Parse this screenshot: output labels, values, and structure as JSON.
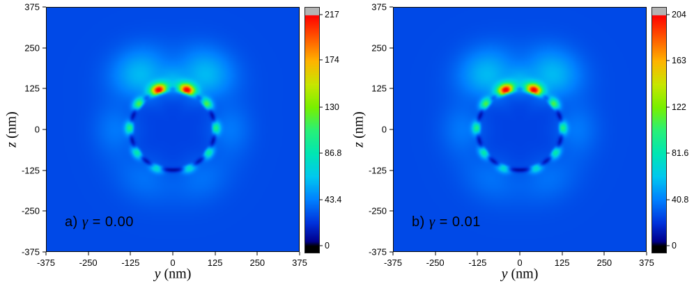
{
  "figure": {
    "background": "#ffffff"
  },
  "colormap": {
    "stops": [
      {
        "t": 0.0,
        "color": "#000000"
      },
      {
        "t": 0.02,
        "color": "#00008c"
      },
      {
        "t": 0.1,
        "color": "#0032dc"
      },
      {
        "t": 0.2,
        "color": "#0080ff"
      },
      {
        "t": 0.3,
        "color": "#00c8f0"
      },
      {
        "t": 0.4,
        "color": "#00e6b4"
      },
      {
        "t": 0.5,
        "color": "#28f078"
      },
      {
        "t": 0.6,
        "color": "#78f000"
      },
      {
        "t": 0.7,
        "color": "#c8e600"
      },
      {
        "t": 0.8,
        "color": "#ffb400"
      },
      {
        "t": 0.9,
        "color": "#ff5a00"
      },
      {
        "t": 1.0,
        "color": "#ff0000"
      }
    ],
    "over_color": "#b4b4b4",
    "under_color": "#000000"
  },
  "field_model": {
    "sphere_radius_nm": 125,
    "background_level": 0.13,
    "interior_level": 0.12,
    "rim_dip": {
      "depth": 0.115,
      "width_nm": 5
    },
    "hotspots": [
      {
        "angle_deg": 19,
        "amp": 0.95,
        "ang_sigma_deg": 8,
        "radial_sigma_out_nm": 15,
        "radial_sigma_in_nm": 6
      },
      {
        "angle_deg": -19,
        "amp": 0.95,
        "ang_sigma_deg": 8,
        "radial_sigma_out_nm": 15,
        "radial_sigma_in_nm": 6
      },
      {
        "angle_deg": 52,
        "amp": 0.5,
        "ang_sigma_deg": 6,
        "radial_sigma_out_nm": 11,
        "radial_sigma_in_nm": 5
      },
      {
        "angle_deg": -52,
        "amp": 0.5,
        "ang_sigma_deg": 6,
        "radial_sigma_out_nm": 11,
        "radial_sigma_in_nm": 5
      },
      {
        "angle_deg": 88,
        "amp": 0.42,
        "ang_sigma_deg": 6,
        "radial_sigma_out_nm": 10,
        "radial_sigma_in_nm": 5
      },
      {
        "angle_deg": -88,
        "amp": 0.42,
        "ang_sigma_deg": 6,
        "radial_sigma_out_nm": 10,
        "radial_sigma_in_nm": 5
      },
      {
        "angle_deg": 124,
        "amp": 0.38,
        "ang_sigma_deg": 6,
        "radial_sigma_out_nm": 10,
        "radial_sigma_in_nm": 5
      },
      {
        "angle_deg": -124,
        "amp": 0.38,
        "ang_sigma_deg": 6,
        "radial_sigma_out_nm": 10,
        "radial_sigma_in_nm": 5
      },
      {
        "angle_deg": 158,
        "amp": 0.3,
        "ang_sigma_deg": 6,
        "radial_sigma_out_nm": 10,
        "radial_sigma_in_nm": 5
      },
      {
        "angle_deg": -158,
        "amp": 0.3,
        "ang_sigma_deg": 6,
        "radial_sigma_out_nm": 10,
        "radial_sigma_in_nm": 5
      }
    ],
    "halos": [
      {
        "angle_deg": 30,
        "r0_nm": 195,
        "amp": 0.15,
        "ang_sigma_deg": 16,
        "radial_sigma_nm": 55
      },
      {
        "angle_deg": -30,
        "r0_nm": 195,
        "amp": 0.15,
        "ang_sigma_deg": 16,
        "radial_sigma_nm": 55
      },
      {
        "angle_deg": 0,
        "r0_nm": 150,
        "amp": 0.1,
        "ang_sigma_deg": 10,
        "radial_sigma_nm": 30
      },
      {
        "angle_deg": 90,
        "r0_nm": 170,
        "amp": 0.06,
        "ang_sigma_deg": 18,
        "radial_sigma_nm": 45
      },
      {
        "angle_deg": -90,
        "r0_nm": 170,
        "amp": 0.06,
        "ang_sigma_deg": 18,
        "radial_sigma_nm": 45
      },
      {
        "angle_deg": 150,
        "r0_nm": 175,
        "amp": 0.05,
        "ang_sigma_deg": 20,
        "radial_sigma_nm": 50
      },
      {
        "angle_deg": -150,
        "r0_nm": 175,
        "amp": 0.05,
        "ang_sigma_deg": 20,
        "radial_sigma_nm": 50
      }
    ]
  },
  "chart_data": [
    {
      "type": "heatmap",
      "panel": "a",
      "label_prefix": "a) ",
      "gamma_symbol": "γ",
      "gamma_suffix": " = 0.00",
      "xlabel_symbol": "y",
      "xlabel_unit": " (nm)",
      "ylabel_symbol": "z",
      "ylabel_unit": " (nm)",
      "xlim": [
        -375,
        375
      ],
      "ylim": [
        -375,
        375
      ],
      "xticks": [
        -375,
        -250,
        -125,
        0,
        125,
        250,
        375
      ],
      "yticks": [
        -375,
        -250,
        -125,
        0,
        125,
        250,
        375
      ],
      "colorbar": {
        "min": 0,
        "max": 217,
        "ticks": [
          0,
          43.4,
          86.8,
          130,
          174,
          217
        ],
        "tick_labels": [
          "0",
          "43.4",
          "86.8",
          "130",
          "174",
          "217"
        ]
      },
      "features": {
        "sphere_radius_nm": 125,
        "sphere_center_nm": [
          0,
          0
        ],
        "peak_field": 217,
        "description": "near-field enhancement map around a nanosphere; brightest arcs on upper surface"
      }
    },
    {
      "type": "heatmap",
      "panel": "b",
      "label_prefix": "b) ",
      "gamma_symbol": "γ",
      "gamma_suffix": " = 0.01",
      "xlabel_symbol": "y",
      "xlabel_unit": " (nm)",
      "ylabel_symbol": "z",
      "ylabel_unit": " (nm)",
      "xlim": [
        -375,
        375
      ],
      "ylim": [
        -375,
        375
      ],
      "xticks": [
        -375,
        -250,
        -125,
        0,
        125,
        250,
        375
      ],
      "yticks": [
        -375,
        -250,
        -125,
        0,
        125,
        250,
        375
      ],
      "colorbar": {
        "min": 0,
        "max": 204,
        "ticks": [
          0,
          40.8,
          81.6,
          122,
          163,
          204
        ],
        "tick_labels": [
          "0",
          "40.8",
          "81.6",
          "122",
          "163",
          "204"
        ]
      },
      "features": {
        "sphere_radius_nm": 125,
        "sphere_center_nm": [
          0,
          0
        ],
        "peak_field": 204,
        "description": "near-field enhancement map around a nanosphere; brightest arcs on upper surface"
      }
    }
  ]
}
